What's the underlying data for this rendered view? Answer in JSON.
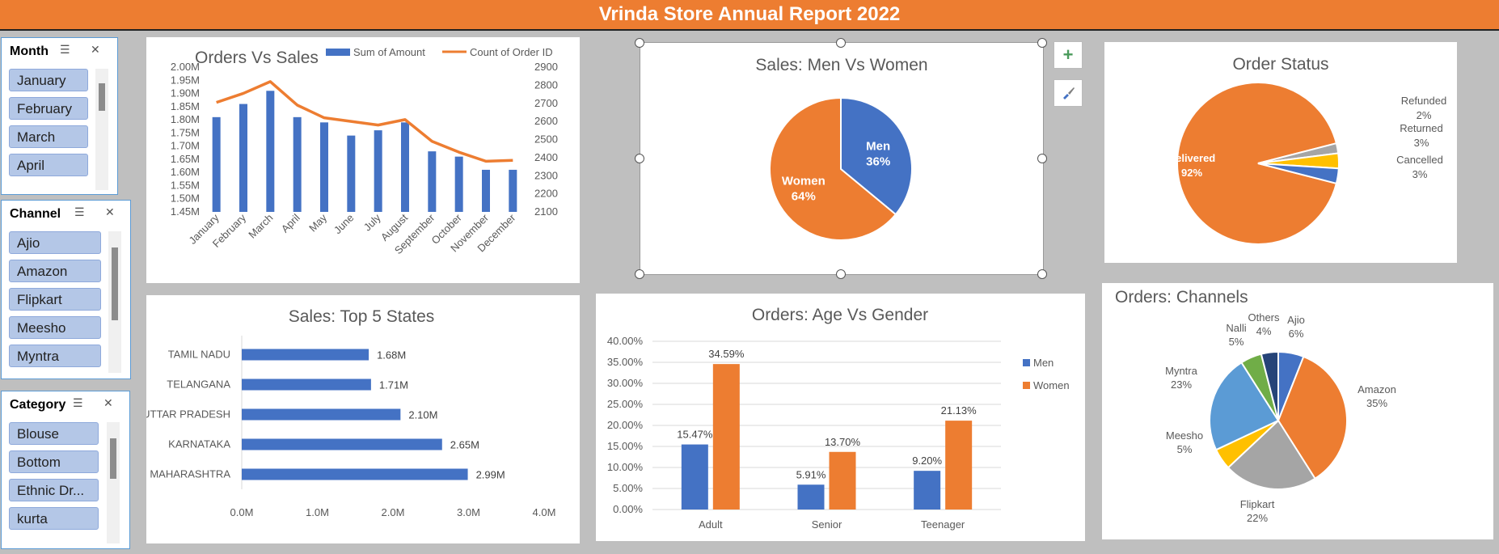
{
  "report_title": "Vrinda Store Annual Report 2022",
  "slicers": {
    "month": {
      "header": "Month",
      "items": [
        "January",
        "February",
        "March",
        "April"
      ]
    },
    "channel": {
      "header": "Channel",
      "items": [
        "Ajio",
        "Amazon",
        "Flipkart",
        "Meesho",
        "Myntra"
      ]
    },
    "category": {
      "header": "Category",
      "items": [
        "Blouse",
        "Bottom",
        "Ethnic Dr...",
        "kurta"
      ]
    }
  },
  "chart_data": [
    {
      "type": "bar",
      "title": "Orders Vs Sales",
      "categories": [
        "January",
        "February",
        "March",
        "April",
        "May",
        "June",
        "July",
        "August",
        "September",
        "October",
        "November",
        "December"
      ],
      "series": [
        {
          "name": "Sum of Amount",
          "type": "bar",
          "axis": "left",
          "values": [
            1.81,
            1.86,
            1.91,
            1.81,
            1.79,
            1.74,
            1.76,
            1.79,
            1.68,
            1.66,
            1.61,
            1.61
          ]
        },
        {
          "name": "Count of Order ID",
          "type": "line",
          "axis": "right",
          "values": [
            2705,
            2755,
            2820,
            2690,
            2620,
            2600,
            2580,
            2610,
            2490,
            2430,
            2380,
            2385
          ]
        }
      ],
      "y_left_ticks": [
        "2.00M",
        "1.95M",
        "1.90M",
        "1.85M",
        "1.80M",
        "1.75M",
        "1.70M",
        "1.65M",
        "1.60M",
        "1.55M",
        "1.50M",
        "1.45M"
      ],
      "y_left_range": [
        1.45,
        2.0
      ],
      "y_right_ticks": [
        "2900",
        "2800",
        "2700",
        "2600",
        "2500",
        "2400",
        "2300",
        "2200",
        "2100"
      ],
      "y_right_range": [
        2100,
        2900
      ],
      "legend_position": "top-right",
      "colors": {
        "bar": "#4472c4",
        "line": "#ed7d31"
      }
    },
    {
      "type": "pie",
      "title": "Sales: Men Vs Women",
      "slices": [
        {
          "label": "Men",
          "pct": "36%",
          "value": 36
        },
        {
          "label": "Women",
          "pct": "64%",
          "value": 64
        }
      ],
      "colors": [
        "#4472c4",
        "#ed7d31"
      ]
    },
    {
      "type": "pie",
      "title": "Order Status",
      "slices": [
        {
          "label": "Delivered",
          "pct": "92%",
          "value": 92
        },
        {
          "label": "Refunded",
          "pct": "2%",
          "value": 2
        },
        {
          "label": "Returned",
          "pct": "3%",
          "value": 3
        },
        {
          "label": "Cancelled",
          "pct": "3%",
          "value": 3
        }
      ],
      "colors": [
        "#ed7d31",
        "#a5a5a5",
        "#ffc000",
        "#4472c4"
      ]
    },
    {
      "type": "bar",
      "orientation": "horizontal",
      "title": "Sales: Top 5 States",
      "categories": [
        "TAMIL NADU",
        "TELANGANA",
        "UTTAR PRADESH",
        "KARNATAKA",
        "MAHARASHTRA"
      ],
      "values": [
        1.68,
        1.71,
        2.1,
        2.65,
        2.99
      ],
      "labels": [
        "1.68M",
        "1.71M",
        "2.10M",
        "2.65M",
        "2.99M"
      ],
      "x_ticks": [
        "0.0M",
        "1.0M",
        "2.0M",
        "3.0M",
        "4.0M"
      ],
      "xlim": [
        0,
        4
      ],
      "colors": {
        "bar": "#4472c4"
      }
    },
    {
      "type": "bar",
      "title": "Orders: Age Vs Gender",
      "categories": [
        "Adult",
        "Senior",
        "Teenager"
      ],
      "series": [
        {
          "name": "Men",
          "values": [
            15.47,
            5.91,
            9.2
          ],
          "labels": [
            "15.47%",
            "5.91%",
            "9.20%"
          ]
        },
        {
          "name": "Women",
          "values": [
            34.59,
            13.7,
            21.13
          ],
          "labels": [
            "34.59%",
            "13.70%",
            "21.13%"
          ]
        }
      ],
      "y_ticks": [
        "40.00%",
        "35.00%",
        "30.00%",
        "25.00%",
        "20.00%",
        "15.00%",
        "10.00%",
        "5.00%",
        "0.00%"
      ],
      "ylim": [
        0,
        40
      ],
      "legend_position": "right",
      "colors": [
        "#4472c4",
        "#ed7d31"
      ]
    },
    {
      "type": "pie",
      "title": "Orders: Channels",
      "slices": [
        {
          "label": "Ajio",
          "pct": "6%",
          "value": 6
        },
        {
          "label": "Amazon",
          "pct": "35%",
          "value": 35
        },
        {
          "label": "Flipkart",
          "pct": "22%",
          "value": 22
        },
        {
          "label": "Meesho",
          "pct": "5%",
          "value": 5
        },
        {
          "label": "Myntra",
          "pct": "23%",
          "value": 23
        },
        {
          "label": "Nalli",
          "pct": "5%",
          "value": 5
        },
        {
          "label": "Others",
          "pct": "4%",
          "value": 4
        }
      ],
      "colors": [
        "#4472c4",
        "#ed7d31",
        "#a5a5a5",
        "#ffc000",
        "#5b9bd5",
        "#70ad47",
        "#264478"
      ]
    }
  ]
}
